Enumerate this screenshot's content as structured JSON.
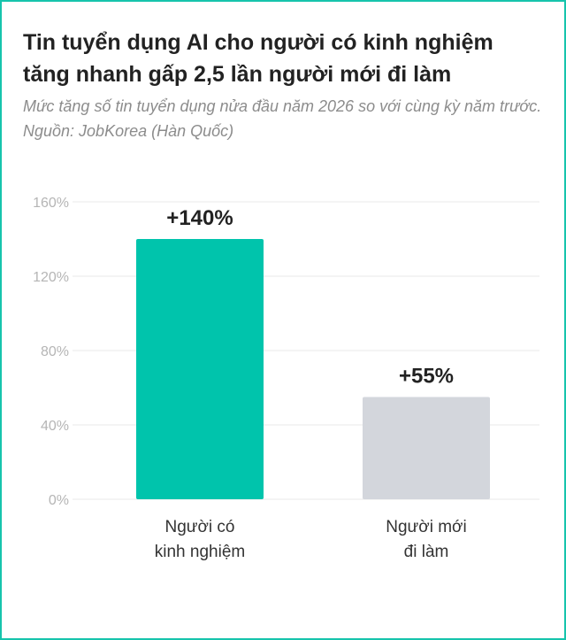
{
  "colors": {
    "frame": "#16c4ac",
    "bar_experienced": "#00c4ac",
    "bar_newcomer": "#d3d6dc"
  },
  "chart_data": {
    "type": "bar",
    "title": "Tin tuyển dụng AI cho người có kinh nghiệm tăng nhanh gấp 2,5 lần người mới đi làm",
    "subtitle": "Mức tăng số tin tuyển dụng nửa đầu năm 2026 so với cùng kỳ năm trước. Nguồn: JobKorea (Hàn Quốc)",
    "xlabel": "",
    "ylabel": "",
    "ylim": [
      0,
      160
    ],
    "yticks": [
      0,
      40,
      80,
      120,
      160
    ],
    "ytick_labels": [
      "0%",
      "40%",
      "80%",
      "120%",
      "160%"
    ],
    "grid": true,
    "categories": [
      [
        "Người có",
        "kinh nghiệm"
      ],
      [
        "Người mới",
        "đi làm"
      ]
    ],
    "values": [
      140,
      55
    ],
    "value_labels": [
      "+140%",
      "+55%"
    ],
    "bar_colors": [
      "#00c4ac",
      "#d3d6dc"
    ]
  }
}
